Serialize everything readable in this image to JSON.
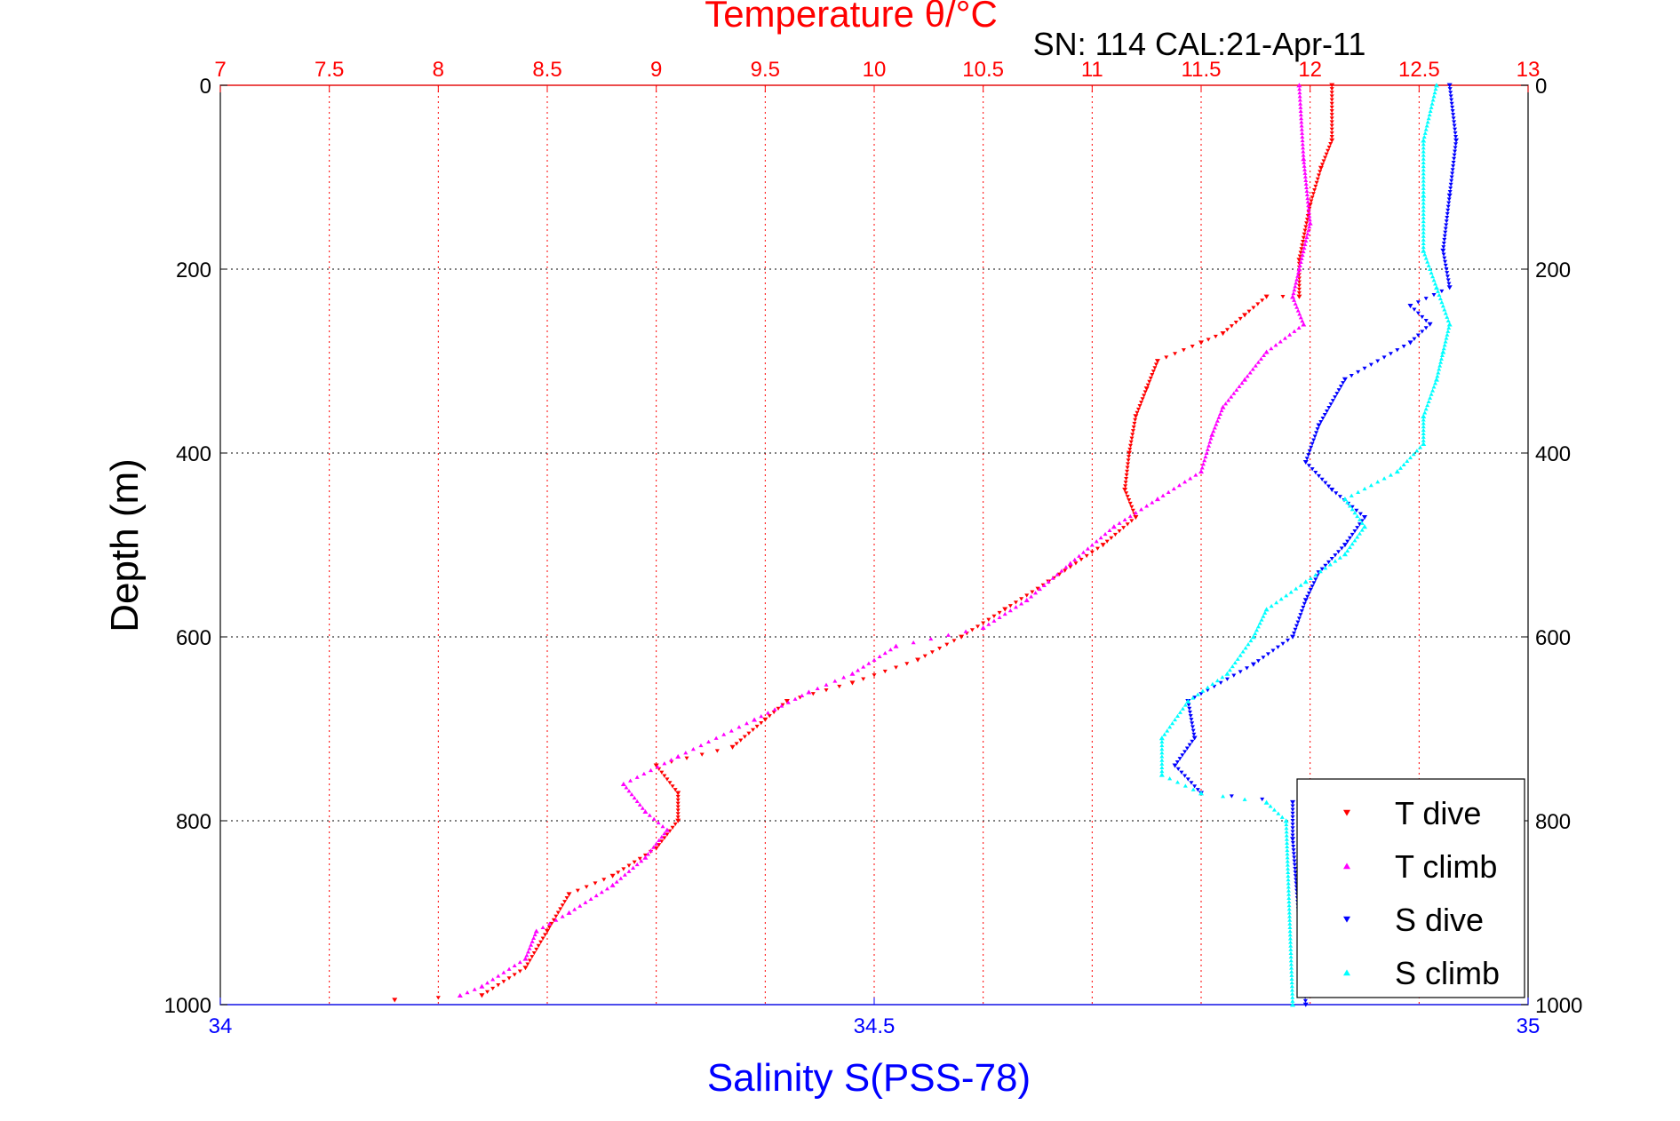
{
  "chart_data": {
    "type": "scatter",
    "title_top": "Temperature θ/°C",
    "annotation": "SN: 114  CAL:21-Apr-11",
    "ylabel": "Depth (m)",
    "xlabel_bottom": "Salinity S(PSS-78)",
    "y_axis": {
      "range": [
        0,
        1000
      ],
      "inverted": true,
      "ticks": [
        "0",
        "200",
        "400",
        "600",
        "800",
        "1000"
      ]
    },
    "x_top": {
      "range": [
        7,
        13
      ],
      "ticks": [
        "7",
        "7.5",
        "8",
        "8.5",
        "9",
        "9.5",
        "10",
        "10.5",
        "11",
        "11.5",
        "12",
        "12.5",
        "13"
      ]
    },
    "x_bottom": {
      "range": [
        34,
        35
      ],
      "ticks": [
        "34",
        "34.5",
        "35"
      ]
    },
    "grid": true,
    "legend_position": "bottom-right",
    "colors": {
      "temperature_axis": "#ff0000",
      "salinity_axis": "#0000ff",
      "grid": "#000000"
    },
    "series": [
      {
        "name": "T dive",
        "axis": "top",
        "color": "#ff0000",
        "marker": "triangle-down",
        "points": [
          [
            12.1,
            0
          ],
          [
            12.1,
            60
          ],
          [
            12.05,
            90
          ],
          [
            12.0,
            130
          ],
          [
            11.95,
            190
          ],
          [
            11.95,
            230
          ],
          [
            11.8,
            230
          ],
          [
            11.7,
            250
          ],
          [
            11.6,
            270
          ],
          [
            11.5,
            280
          ],
          [
            11.3,
            300
          ],
          [
            11.25,
            330
          ],
          [
            11.2,
            360
          ],
          [
            11.17,
            400
          ],
          [
            11.15,
            440
          ],
          [
            11.2,
            470
          ],
          [
            11.05,
            500
          ],
          [
            10.8,
            540
          ],
          [
            10.6,
            570
          ],
          [
            10.4,
            600
          ],
          [
            10.2,
            625
          ],
          [
            9.9,
            650
          ],
          [
            9.6,
            670
          ],
          [
            9.5,
            690
          ],
          [
            9.35,
            720
          ],
          [
            9.0,
            740
          ],
          [
            9.1,
            770
          ],
          [
            9.1,
            800
          ],
          [
            9.0,
            830
          ],
          [
            8.8,
            860
          ],
          [
            8.6,
            880
          ],
          [
            8.5,
            920
          ],
          [
            8.4,
            960
          ],
          [
            8.2,
            990
          ],
          [
            7.8,
            995
          ]
        ]
      },
      {
        "name": "T climb",
        "axis": "top",
        "color": "#ff00ff",
        "marker": "triangle-up",
        "points": [
          [
            11.95,
            0
          ],
          [
            11.97,
            80
          ],
          [
            12.0,
            150
          ],
          [
            11.95,
            200
          ],
          [
            11.92,
            230
          ],
          [
            11.97,
            260
          ],
          [
            11.8,
            290
          ],
          [
            11.7,
            320
          ],
          [
            11.6,
            350
          ],
          [
            11.55,
            380
          ],
          [
            11.5,
            420
          ],
          [
            11.3,
            450
          ],
          [
            11.1,
            480
          ],
          [
            10.9,
            520
          ],
          [
            10.7,
            560
          ],
          [
            10.5,
            590
          ],
          [
            10.1,
            610
          ],
          [
            9.9,
            640
          ],
          [
            9.7,
            660
          ],
          [
            9.45,
            690
          ],
          [
            9.1,
            730
          ],
          [
            8.85,
            760
          ],
          [
            8.95,
            790
          ],
          [
            9.05,
            810
          ],
          [
            8.95,
            840
          ],
          [
            8.8,
            870
          ],
          [
            8.6,
            900
          ],
          [
            8.45,
            920
          ],
          [
            8.4,
            950
          ],
          [
            8.2,
            980
          ],
          [
            8.1,
            990
          ]
        ]
      },
      {
        "name": "S dive",
        "axis": "bottom",
        "color": "#0000ff",
        "marker": "triangle-down",
        "points": [
          [
            34.94,
            0
          ],
          [
            34.945,
            60
          ],
          [
            34.94,
            120
          ],
          [
            34.935,
            180
          ],
          [
            34.94,
            220
          ],
          [
            34.91,
            240
          ],
          [
            34.925,
            260
          ],
          [
            34.91,
            280
          ],
          [
            34.86,
            320
          ],
          [
            34.84,
            370
          ],
          [
            34.83,
            410
          ],
          [
            34.85,
            440
          ],
          [
            34.875,
            470
          ],
          [
            34.86,
            500
          ],
          [
            34.84,
            530
          ],
          [
            34.83,
            560
          ],
          [
            34.82,
            600
          ],
          [
            34.79,
            630
          ],
          [
            34.74,
            670
          ],
          [
            34.745,
            710
          ],
          [
            34.73,
            740
          ],
          [
            34.75,
            770
          ],
          [
            34.82,
            780
          ],
          [
            34.82,
            820
          ],
          [
            34.83,
            1000
          ]
        ]
      },
      {
        "name": "S climb",
        "axis": "bottom",
        "color": "#00ffff",
        "marker": "triangle-up",
        "points": [
          [
            34.93,
            0
          ],
          [
            34.92,
            60
          ],
          [
            34.92,
            120
          ],
          [
            34.92,
            180
          ],
          [
            34.93,
            220
          ],
          [
            34.94,
            260
          ],
          [
            34.935,
            290
          ],
          [
            34.93,
            320
          ],
          [
            34.92,
            360
          ],
          [
            34.92,
            390
          ],
          [
            34.9,
            420
          ],
          [
            34.86,
            450
          ],
          [
            34.875,
            480
          ],
          [
            34.86,
            510
          ],
          [
            34.83,
            540
          ],
          [
            34.8,
            570
          ],
          [
            34.79,
            600
          ],
          [
            34.77,
            640
          ],
          [
            34.74,
            670
          ],
          [
            34.72,
            710
          ],
          [
            34.72,
            750
          ],
          [
            34.75,
            770
          ],
          [
            34.8,
            780
          ],
          [
            34.815,
            800
          ],
          [
            34.82,
            1000
          ]
        ]
      }
    ]
  }
}
